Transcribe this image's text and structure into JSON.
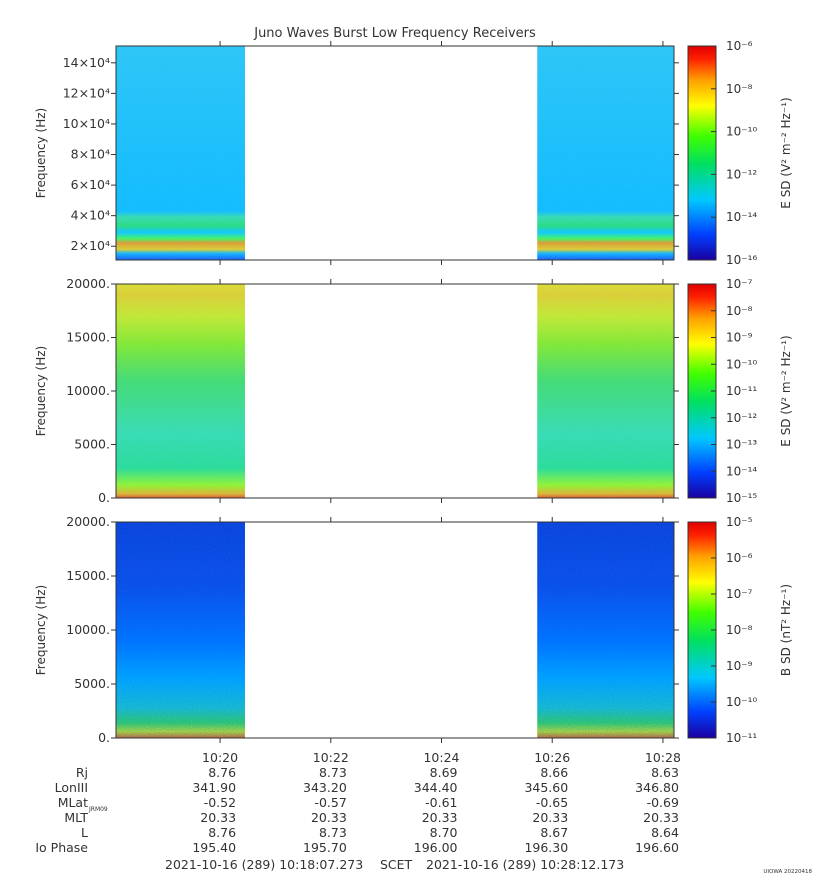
{
  "title": "Juno Waves Burst Low Frequency Receivers",
  "footer": {
    "start": "2021-10-16 (289) 10:18:07.273",
    "scet": "SCET",
    "end": "2021-10-16 (289) 10:28:12.173",
    "version": "UIOWA 20220418"
  },
  "colors": {
    "axis": "#333333",
    "bar_stops": [
      "#1a00a0",
      "#0040ff",
      "#00c8ff",
      "#00e060",
      "#40ff00",
      "#ffff00",
      "#ffa000",
      "#ff2000",
      "#e00000"
    ]
  },
  "chart_data": [
    {
      "type": "heatmap",
      "panel": "top",
      "ylabel": "Frequency (Hz)",
      "ytick_labels": [
        "2×10⁴",
        "4×10⁴",
        "6×10⁴",
        "8×10⁴",
        "10×10⁴",
        "12×10⁴",
        "14×10⁴"
      ],
      "yticks": [
        20000,
        40000,
        60000,
        80000,
        100000,
        120000,
        140000
      ],
      "ylim": [
        11000,
        151000
      ],
      "colorbar_label": "E SD (V² m⁻² Hz⁻¹)",
      "colorbar_ticks": [
        "10⁻⁶",
        "10⁻⁸",
        "10⁻¹⁰",
        "10⁻¹²",
        "10⁻¹⁴",
        "10⁻¹⁶"
      ],
      "colorbar_range": [
        -16,
        -6
      ]
    },
    {
      "type": "heatmap",
      "panel": "middle",
      "ylabel": "Frequency (Hz)",
      "ytick_labels": [
        "0.",
        "5000.",
        "10000.",
        "15000.",
        "20000."
      ],
      "yticks": [
        0,
        5000,
        10000,
        15000,
        20000
      ],
      "ylim": [
        0,
        20000
      ],
      "colorbar_label": "E SD (V² m⁻² Hz⁻¹)",
      "colorbar_ticks": [
        "10⁻⁷",
        "10⁻⁸",
        "10⁻⁹",
        "10⁻¹⁰",
        "10⁻¹¹",
        "10⁻¹²",
        "10⁻¹³",
        "10⁻¹⁴",
        "10⁻¹⁵"
      ],
      "colorbar_range": [
        -15,
        -7
      ]
    },
    {
      "type": "heatmap",
      "panel": "bottom",
      "ylabel": "Frequency (Hz)",
      "ytick_labels": [
        "0.",
        "5000.",
        "10000.",
        "15000.",
        "20000."
      ],
      "yticks": [
        0,
        5000,
        10000,
        15000,
        20000
      ],
      "ylim": [
        0,
        20000
      ],
      "colorbar_label": "B SD (nT² Hz⁻¹)",
      "colorbar_ticks": [
        "10⁻⁵",
        "10⁻⁶",
        "10⁻⁷",
        "10⁻⁸",
        "10⁻⁹",
        "10⁻¹⁰",
        "10⁻¹¹"
      ],
      "colorbar_range": [
        -11,
        -5
      ]
    }
  ],
  "time_axis": {
    "xlim_minutes": [
      18.12,
      28.2
    ],
    "ticks": [
      "10:20",
      "10:22",
      "10:24",
      "10:26",
      "10:28"
    ],
    "tick_minutes": [
      20,
      22,
      24,
      26,
      28
    ],
    "data_gap_minutes": [
      20.45,
      25.73
    ]
  },
  "ephemeris": {
    "rows": [
      {
        "label": "Rj",
        "sub": "",
        "values": [
          "8.76",
          "8.73",
          "8.69",
          "8.66",
          "8.63"
        ]
      },
      {
        "label": "LonIII",
        "sub": "",
        "values": [
          "341.90",
          "343.20",
          "344.40",
          "345.60",
          "346.80"
        ]
      },
      {
        "label": "MLat",
        "sub": "JRM09",
        "values": [
          "-0.52",
          "-0.57",
          "-0.61",
          "-0.65",
          "-0.69"
        ]
      },
      {
        "label": "MLT",
        "sub": "",
        "values": [
          "20.33",
          "20.33",
          "20.33",
          "20.33",
          "20.33"
        ]
      },
      {
        "label": "L",
        "sub": "",
        "values": [
          "8.76",
          "8.73",
          "8.70",
          "8.67",
          "8.64"
        ]
      },
      {
        "label": "Io Phase",
        "sub": "",
        "values": [
          "195.40",
          "195.70",
          "196.00",
          "196.30",
          "196.60"
        ]
      }
    ]
  }
}
